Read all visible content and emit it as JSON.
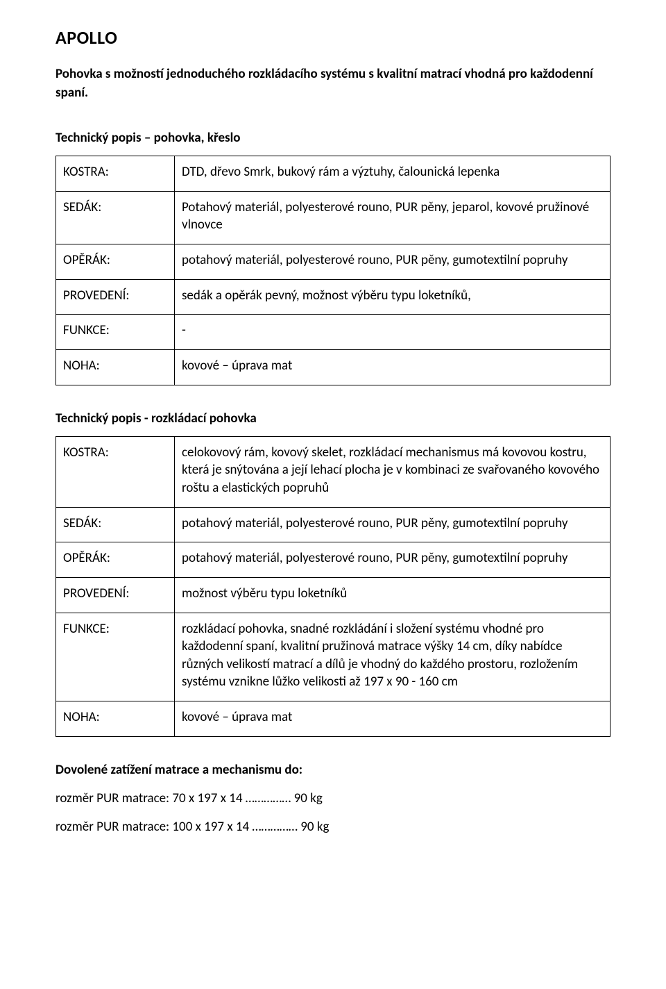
{
  "title": "APOLLO",
  "intro": "Pohovka s možností jednoduchého rozkládacího systému s kvalitní matrací vhodná pro každodenní spaní.",
  "section1": {
    "heading": "Technický popis – pohovka, křeslo",
    "rows": [
      {
        "label": "KOSTRA:",
        "value": "DTD, dřevo Smrk, bukový rám a výztuhy, čalounická lepenka"
      },
      {
        "label": "SEDÁK:",
        "value": "Potahový materiál, polyesterové rouno, PUR pěny, jeparol, kovové pružinové vlnovce"
      },
      {
        "label": "OPĚRÁK:",
        "value": "potahový materiál, polyesterové rouno, PUR pěny, gumotextilní popruhy"
      },
      {
        "label": "PROVEDENÍ:",
        "value": "sedák a opěrák pevný, možnost výběru typu loketníků,"
      },
      {
        "label": "FUNKCE:",
        "value": "-"
      },
      {
        "label": "NOHA:",
        "value": "kovové – úprava mat"
      }
    ]
  },
  "section2": {
    "heading": "Technický popis -  rozkládací pohovka",
    "rows": [
      {
        "label": "KOSTRA:",
        "value": "celokovový rám, kovový skelet, rozkládací mechanismus má kovovou kostru, která je snýtována a její lehací plocha je v kombinaci ze svařovaného kovového roštu a elastických popruhů"
      },
      {
        "label": "SEDÁK:",
        "value": "potahový materiál, polyesterové rouno, PUR pěny, gumotextilní popruhy"
      },
      {
        "label": "OPĚRÁK:",
        "value": "potahový materiál, polyesterové rouno, PUR pěny, gumotextilní popruhy"
      },
      {
        "label": "PROVEDENÍ:",
        "value": "možnost výběru typu loketníků"
      },
      {
        "label": "FUNKCE:",
        "value": "rozkládací pohovka, snadné rozkládání i složení systému vhodné pro každodenní spaní, kvalitní pružinová matrace výšky 14 cm, díky nabídce různých velikostí matrací a dílů je vhodný do každého prostoru, rozložením systému vznikne lůžko velikosti až 197 x 90 - 160 cm"
      },
      {
        "label": "NOHA:",
        "value": "kovové – úprava mat"
      }
    ]
  },
  "load": {
    "heading": "Dovolené zatížení matrace a mechanismu do:",
    "lines": [
      "rozměr PUR matrace: 70 x 197 x 14 ……………   90 kg",
      "rozměr PUR matrace: 100 x 197 x 14 ……………  90 kg"
    ]
  }
}
